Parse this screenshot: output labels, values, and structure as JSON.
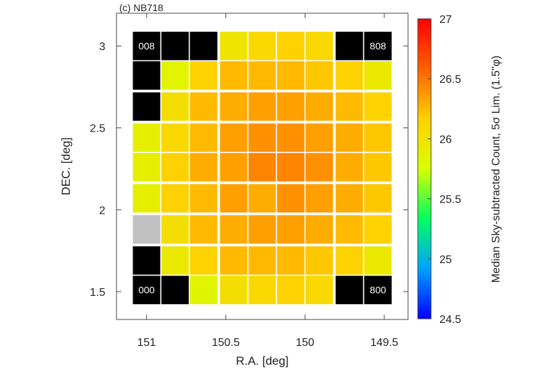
{
  "chart_data": {
    "type": "heatmap",
    "title": "(c) NB718",
    "xlabel": "R.A. [deg]",
    "ylabel": "DEC. [deg]",
    "colorbar_label": "Median Sky-subtracted Count, 5σ Lim. (1.5\"φ)",
    "x_ticks": [
      {
        "value": 151.0,
        "label": "151"
      },
      {
        "value": 150.5,
        "label": "150.5"
      },
      {
        "value": 150.0,
        "label": "150"
      },
      {
        "value": 149.5,
        "label": "149.5"
      }
    ],
    "y_ticks": [
      {
        "value": 1.5,
        "label": "1.5"
      },
      {
        "value": 2.0,
        "label": "2"
      },
      {
        "value": 2.5,
        "label": "2.5"
      },
      {
        "value": 3.0,
        "label": "3"
      }
    ],
    "xlim": [
      151.19,
      149.35
    ],
    "ylim": [
      1.33,
      3.2
    ],
    "colorbar": {
      "min": 24.5,
      "max": 27,
      "ticks": [
        {
          "value": 24.5,
          "label": "24.5"
        },
        {
          "value": 25.0,
          "label": "25"
        },
        {
          "value": 25.5,
          "label": "25.5"
        },
        {
          "value": 26.0,
          "label": "26"
        },
        {
          "value": 26.5,
          "label": "26.5"
        },
        {
          "value": 27.0,
          "label": "27"
        }
      ],
      "stops": [
        "#0000ff",
        "#00a0ff",
        "#00ff60",
        "#d8ff00",
        "#ffd000",
        "#ff6000",
        "#ff0000"
      ]
    },
    "grid": {
      "ra_centers": [
        151.0,
        150.82,
        150.64,
        150.45,
        150.27,
        150.09,
        149.91,
        149.72,
        149.54
      ],
      "dec_centers": [
        3.0,
        2.82,
        2.63,
        2.44,
        2.26,
        2.07,
        1.88,
        1.69,
        1.51
      ],
      "patch_span_deg": 0.18,
      "null_meaning": "no data (black)",
      "rows": [
        [
          null,
          null,
          null,
          26.0,
          26.1,
          26.15,
          26.1,
          null,
          null
        ],
        [
          null,
          25.85,
          26.15,
          26.25,
          26.25,
          26.25,
          26.2,
          26.15,
          25.95
        ],
        [
          null,
          26.05,
          26.25,
          26.3,
          26.35,
          26.35,
          26.3,
          26.25,
          26.15
        ],
        [
          25.9,
          26.1,
          26.25,
          26.35,
          26.4,
          26.4,
          26.35,
          26.3,
          26.2
        ],
        [
          25.9,
          26.15,
          26.3,
          26.35,
          26.45,
          26.45,
          26.4,
          26.3,
          26.2
        ],
        [
          25.9,
          26.15,
          26.25,
          26.35,
          26.3,
          26.4,
          26.35,
          26.3,
          26.2
        ],
        [
          "gray",
          26.05,
          26.25,
          26.3,
          26.35,
          26.35,
          26.3,
          26.25,
          26.15
        ],
        [
          null,
          25.95,
          26.15,
          26.25,
          26.25,
          26.25,
          26.2,
          26.15,
          25.95
        ],
        [
          null,
          null,
          25.85,
          26.05,
          26.1,
          26.15,
          26.1,
          null,
          null
        ]
      ],
      "corner_labels": [
        {
          "row": 0,
          "col": 0,
          "text": "008"
        },
        {
          "row": 0,
          "col": 8,
          "text": "808"
        },
        {
          "row": 8,
          "col": 0,
          "text": "000"
        },
        {
          "row": 8,
          "col": 8,
          "text": "800"
        }
      ]
    }
  }
}
